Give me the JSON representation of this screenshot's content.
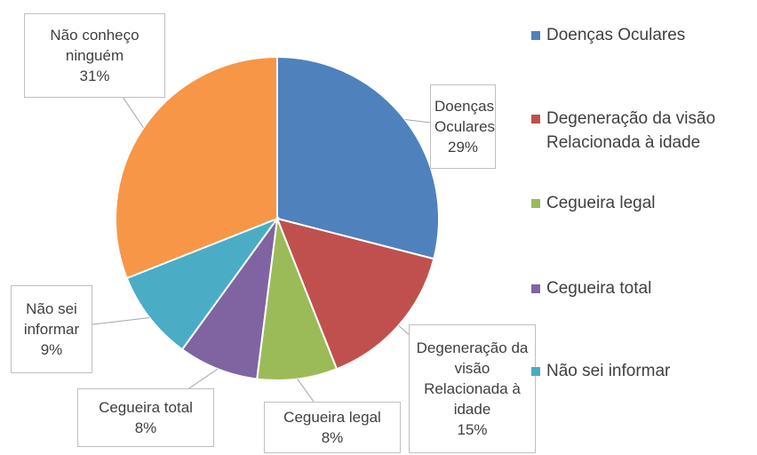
{
  "chart_data": {
    "type": "pie",
    "categories": [
      "Doenças Oculares",
      "Degeneração da visão Relacionada à idade",
      "Cegueira legal",
      "Cegueira total",
      "Não sei informar",
      "Não conheço ninguém"
    ],
    "values": [
      29,
      15,
      8,
      8,
      9,
      31
    ],
    "value_labels": [
      "29%",
      "15%",
      "8%",
      "8%",
      "9%",
      "31%"
    ],
    "colors": [
      "#4f81bd",
      "#c0504d",
      "#9bbb59",
      "#8064a2",
      "#4bacc6",
      "#f79646"
    ],
    "legend": "right"
  }
}
